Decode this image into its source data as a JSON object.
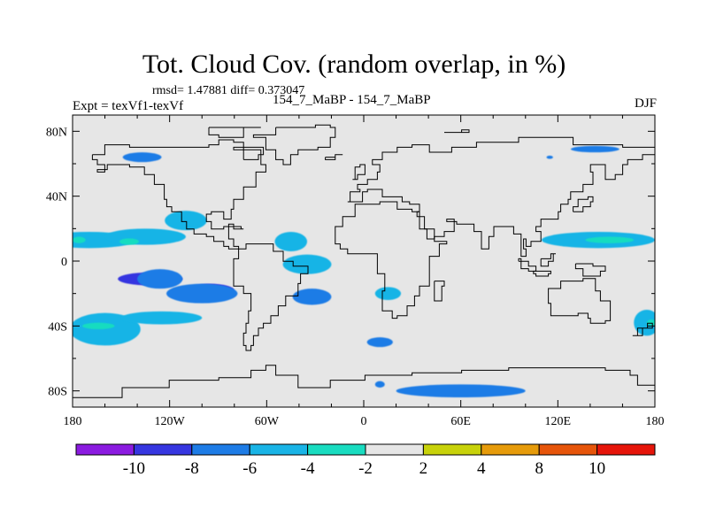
{
  "chart_data": {
    "type": "heatmap",
    "title": "Tot. Cloud Cov. (random overlap, in %)",
    "stats_text": "rmsd= 1.47881 diff= 0.373047",
    "left_label": "Expt = texVf1-texVf",
    "center_label": "154_7_MaBP - 154_7_MaBP",
    "right_label": "DJF",
    "xlim": [
      -180,
      180
    ],
    "ylim": [
      -90,
      90
    ],
    "x_ticks": [
      {
        "value": -180,
        "label": "180"
      },
      {
        "value": -120,
        "label": "120W"
      },
      {
        "value": -60,
        "label": "60W"
      },
      {
        "value": 0,
        "label": "0"
      },
      {
        "value": 60,
        "label": "60E"
      },
      {
        "value": 120,
        "label": "120E"
      },
      {
        "value": 180,
        "label": "180"
      }
    ],
    "y_ticks": [
      {
        "value": 80,
        "label": "80N"
      },
      {
        "value": 40,
        "label": "40N"
      },
      {
        "value": 0,
        "label": "0"
      },
      {
        "value": -40,
        "label": "40S"
      },
      {
        "value": -80,
        "label": "80S"
      }
    ],
    "colorbar": {
      "levels": [
        -10,
        -8,
        -6,
        -4,
        -2,
        2,
        4,
        8,
        10
      ],
      "labels": [
        "-10",
        "-8",
        "-6",
        "-4",
        "-2",
        "2",
        "4",
        "8",
        "10"
      ],
      "colors": [
        "#8b1be0",
        "#3636e0",
        "#1e7ce6",
        "#19b4e6",
        "#19dcc0",
        "#e6e6e6",
        "#c8d20a",
        "#e69b0a",
        "#e6550a",
        "#e6150a"
      ]
    },
    "regions": [
      {
        "level": 3,
        "lon": -170,
        "lat": 13,
        "rlon": 30,
        "rlat": 5
      },
      {
        "level": 3,
        "lon": -135,
        "lat": 15,
        "rlon": 25,
        "rlat": 5
      },
      {
        "level": 3,
        "lon": -110,
        "lat": 25,
        "rlon": 13,
        "rlat": 6
      },
      {
        "level": 3,
        "lon": -45,
        "lat": 12,
        "rlon": 10,
        "rlat": 6
      },
      {
        "level": 3,
        "lon": -35,
        "lat": -2,
        "rlon": 15,
        "rlat": 6
      },
      {
        "level": 3,
        "lon": -160,
        "lat": -42,
        "rlon": 22,
        "rlat": 10
      },
      {
        "level": 3,
        "lon": -125,
        "lat": -35,
        "rlon": 25,
        "rlat": 4
      },
      {
        "level": 3,
        "lon": 15,
        "lat": -20,
        "rlon": 8,
        "rlat": 4
      },
      {
        "level": 3,
        "lon": 145,
        "lat": 13,
        "rlon": 35,
        "rlat": 5
      },
      {
        "level": 3,
        "lon": 175,
        "lat": -38,
        "rlon": 8,
        "rlat": 8
      },
      {
        "level": 4,
        "lon": -176,
        "lat": 13,
        "rlon": 4,
        "rlat": 2
      },
      {
        "level": 4,
        "lon": -145,
        "lat": 12,
        "rlon": 6,
        "rlat": 2
      },
      {
        "level": 4,
        "lon": -164,
        "lat": -40,
        "rlon": 10,
        "rlat": 2
      },
      {
        "level": 4,
        "lon": 152,
        "lat": 13,
        "rlon": 15,
        "rlat": 2
      },
      {
        "level": 4,
        "lon": 178,
        "lat": -38,
        "rlon": 3,
        "rlat": 2
      },
      {
        "level": 1,
        "lon": -132,
        "lat": -11,
        "rlon": 20,
        "rlat": 4
      },
      {
        "level": 1,
        "lon": -95,
        "lat": -18,
        "rlon": 15,
        "rlat": 4
      },
      {
        "level": 2,
        "lon": -126,
        "lat": -11,
        "rlon": 14,
        "rlat": 6
      },
      {
        "level": 2,
        "lon": -100,
        "lat": -20,
        "rlon": 22,
        "rlat": 6
      },
      {
        "level": 2,
        "lon": -32,
        "lat": -22,
        "rlon": 12,
        "rlat": 5
      },
      {
        "level": 2,
        "lon": -137,
        "lat": 64,
        "rlon": 12,
        "rlat": 3
      },
      {
        "level": 2,
        "lon": 143,
        "lat": 69,
        "rlon": 15,
        "rlat": 2
      },
      {
        "level": 2,
        "lon": 115,
        "lat": 64,
        "rlon": 2,
        "rlat": 1
      },
      {
        "level": 2,
        "lon": 10,
        "lat": -50,
        "rlon": 8,
        "rlat": 3
      },
      {
        "level": 2,
        "lon": 60,
        "lat": -80,
        "rlon": 40,
        "rlat": 4
      },
      {
        "level": 2,
        "lon": 10,
        "lat": -76,
        "rlon": 3,
        "rlat": 2
      }
    ],
    "coastlines": [
      [
        [
          -168,
          66
        ],
        [
          -160,
          72
        ],
        [
          -145,
          70
        ],
        [
          -125,
          70
        ],
        [
          -108,
          70
        ],
        [
          -95,
          72
        ],
        [
          -90,
          74
        ],
        [
          -80,
          73
        ],
        [
          -74,
          68
        ],
        [
          -64,
          60
        ],
        [
          -60,
          55
        ],
        [
          -67,
          45
        ],
        [
          -75,
          38
        ],
        [
          -80,
          32
        ],
        [
          -82,
          26
        ],
        [
          -86,
          30
        ],
        [
          -94,
          29
        ],
        [
          -97,
          25
        ],
        [
          -94,
          20
        ],
        [
          -90,
          20
        ],
        [
          -86,
          21
        ],
        [
          -84,
          14
        ],
        [
          -80,
          9
        ],
        [
          -77,
          8
        ],
        [
          -73,
          11
        ],
        [
          -64,
          10
        ],
        [
          -56,
          6
        ],
        [
          -50,
          0
        ],
        [
          -44,
          -3
        ],
        [
          -35,
          -7
        ],
        [
          -39,
          -14
        ],
        [
          -41,
          -22
        ],
        [
          -48,
          -28
        ],
        [
          -53,
          -34
        ],
        [
          -58,
          -38
        ],
        [
          -62,
          -41
        ],
        [
          -65,
          -46
        ],
        [
          -68,
          -52
        ],
        [
          -70,
          -55
        ],
        [
          -73,
          -52
        ],
        [
          -74,
          -45
        ],
        [
          -73,
          -38
        ],
        [
          -71,
          -30
        ],
        [
          -70,
          -20
        ],
        [
          -75,
          -15
        ],
        [
          -80,
          -6
        ],
        [
          -81,
          -2
        ],
        [
          -80,
          2
        ],
        [
          -78,
          8
        ],
        [
          -83,
          9
        ],
        [
          -86,
          12
        ],
        [
          -92,
          15
        ],
        [
          -97,
          16
        ],
        [
          -105,
          20
        ],
        [
          -110,
          24
        ],
        [
          -112,
          30
        ],
        [
          -118,
          34
        ],
        [
          -122,
          38
        ],
        [
          -124,
          42
        ],
        [
          -124,
          48
        ],
        [
          -130,
          54
        ],
        [
          -136,
          58
        ],
        [
          -145,
          60
        ],
        [
          -152,
          59
        ],
        [
          -158,
          57
        ],
        [
          -164,
          55
        ],
        [
          -160,
          60
        ],
        [
          -165,
          63
        ],
        [
          -168,
          66
        ]
      ],
      [
        [
          -55,
          82
        ],
        [
          -30,
          84
        ],
        [
          -20,
          82
        ],
        [
          -18,
          76
        ],
        [
          -20,
          70
        ],
        [
          -28,
          68
        ],
        [
          -40,
          65
        ],
        [
          -45,
          60
        ],
        [
          -50,
          63
        ],
        [
          -55,
          68
        ],
        [
          -60,
          76
        ],
        [
          -68,
          78
        ],
        [
          -55,
          82
        ]
      ],
      [
        [
          -95,
          82
        ],
        [
          -75,
          83
        ],
        [
          -64,
          82
        ],
        [
          -75,
          76
        ],
        [
          -90,
          78
        ],
        [
          -95,
          82
        ]
      ],
      [
        [
          -17,
          15
        ],
        [
          -17,
          21
        ],
        [
          -13,
          28
        ],
        [
          -6,
          35
        ],
        [
          10,
          37
        ],
        [
          20,
          32
        ],
        [
          30,
          31
        ],
        [
          34,
          28
        ],
        [
          38,
          20
        ],
        [
          43,
          12
        ],
        [
          51,
          11
        ],
        [
          46,
          3
        ],
        [
          40,
          -5
        ],
        [
          40,
          -15
        ],
        [
          35,
          -22
        ],
        [
          32,
          -28
        ],
        [
          27,
          -34
        ],
        [
          20,
          -35
        ],
        [
          17,
          -30
        ],
        [
          12,
          -18
        ],
        [
          13,
          -8
        ],
        [
          9,
          -1
        ],
        [
          9,
          4
        ],
        [
          5,
          5
        ],
        [
          -5,
          5
        ],
        [
          -10,
          7
        ],
        [
          -15,
          11
        ],
        [
          -17,
          15
        ]
      ],
      [
        [
          -10,
          36
        ],
        [
          -9,
          43
        ],
        [
          -2,
          44
        ],
        [
          -4,
          48
        ],
        [
          2,
          51
        ],
        [
          8,
          55
        ],
        [
          10,
          59
        ],
        [
          5,
          62
        ],
        [
          12,
          67
        ],
        [
          20,
          70
        ],
        [
          30,
          71
        ],
        [
          40,
          67
        ],
        [
          55,
          70
        ],
        [
          70,
          73
        ],
        [
          80,
          73
        ],
        [
          95,
          77
        ],
        [
          110,
          76
        ],
        [
          130,
          72
        ],
        [
          145,
          72
        ],
        [
          160,
          70
        ],
        [
          170,
          70
        ],
        [
          180,
          69
        ],
        [
          180,
          65
        ],
        [
          172,
          62
        ],
        [
          163,
          60
        ],
        [
          160,
          53
        ],
        [
          156,
          51
        ],
        [
          150,
          59
        ],
        [
          140,
          55
        ],
        [
          142,
          48
        ],
        [
          135,
          43
        ],
        [
          128,
          38
        ],
        [
          126,
          35
        ],
        [
          122,
          31
        ],
        [
          120,
          26
        ],
        [
          110,
          21
        ],
        [
          106,
          18
        ],
        [
          109,
          12
        ],
        [
          104,
          9
        ],
        [
          100,
          13
        ],
        [
          99,
          8
        ],
        [
          101,
          3
        ],
        [
          98,
          8
        ],
        [
          97,
          16
        ],
        [
          92,
          21
        ],
        [
          88,
          22
        ],
        [
          80,
          15
        ],
        [
          77,
          8
        ],
        [
          73,
          18
        ],
        [
          68,
          23
        ],
        [
          58,
          25
        ],
        [
          56,
          26
        ],
        [
          52,
          24
        ],
        [
          56,
          18
        ],
        [
          50,
          15
        ],
        [
          44,
          13
        ],
        [
          39,
          20
        ],
        [
          35,
          28
        ],
        [
          33,
          31
        ],
        [
          35,
          35
        ],
        [
          28,
          37
        ],
        [
          24,
          40
        ],
        [
          20,
          40
        ],
        [
          15,
          40
        ],
        [
          12,
          44
        ],
        [
          9,
          44
        ],
        [
          3,
          43
        ],
        [
          -1,
          37
        ],
        [
          -10,
          36
        ]
      ],
      [
        [
          114,
          -22
        ],
        [
          114,
          -26
        ],
        [
          116,
          -34
        ],
        [
          124,
          -34
        ],
        [
          132,
          -32
        ],
        [
          138,
          -35
        ],
        [
          140,
          -38
        ],
        [
          146,
          -39
        ],
        [
          150,
          -37
        ],
        [
          153,
          -28
        ],
        [
          153,
          -25
        ],
        [
          146,
          -19
        ],
        [
          143,
          -11
        ],
        [
          136,
          -12
        ],
        [
          131,
          -12
        ],
        [
          122,
          -17
        ],
        [
          114,
          -22
        ]
      ],
      [
        [
          -180,
          -84
        ],
        [
          -150,
          -78
        ],
        [
          -120,
          -74
        ],
        [
          -90,
          -72
        ],
        [
          -70,
          -68
        ],
        [
          -60,
          -64
        ],
        [
          -55,
          -70
        ],
        [
          -40,
          -78
        ],
        [
          -20,
          -73
        ],
        [
          0,
          -70
        ],
        [
          30,
          -69
        ],
        [
          60,
          -67
        ],
        [
          90,
          -66
        ],
        [
          120,
          -66
        ],
        [
          150,
          -68
        ],
        [
          165,
          -71
        ],
        [
          170,
          -77
        ],
        [
          180,
          -80
        ]
      ],
      [
        [
          -7,
          50
        ],
        [
          -5,
          58
        ],
        [
          -2,
          59
        ],
        [
          1,
          53
        ],
        [
          -4,
          50
        ],
        [
          -7,
          50
        ]
      ],
      [
        [
          44,
          -13
        ],
        [
          50,
          -15
        ],
        [
          48,
          -25
        ],
        [
          44,
          -24
        ],
        [
          44,
          -13
        ]
      ],
      [
        [
          130,
          31
        ],
        [
          135,
          34
        ],
        [
          140,
          36
        ],
        [
          141,
          40
        ],
        [
          139,
          38
        ],
        [
          133,
          33
        ],
        [
          130,
          31
        ]
      ],
      [
        [
          -24,
          64
        ],
        [
          -18,
          66
        ],
        [
          -13,
          65
        ],
        [
          -18,
          63
        ],
        [
          -24,
          64
        ]
      ],
      [
        [
          50,
          80
        ],
        [
          60,
          81
        ],
        [
          65,
          80
        ],
        [
          55,
          79
        ],
        [
          50,
          80
        ]
      ],
      [
        [
          95,
          0
        ],
        [
          102,
          -3
        ],
        [
          106,
          -6
        ],
        [
          102,
          -4
        ],
        [
          98,
          2
        ],
        [
          95,
          0
        ]
      ],
      [
        [
          109,
          2
        ],
        [
          115,
          5
        ],
        [
          119,
          5
        ],
        [
          117,
          0
        ],
        [
          114,
          -3
        ],
        [
          110,
          -2
        ],
        [
          109,
          2
        ]
      ],
      [
        [
          131,
          -1
        ],
        [
          141,
          -3
        ],
        [
          150,
          -6
        ],
        [
          147,
          -10
        ],
        [
          141,
          -9
        ],
        [
          135,
          -4
        ],
        [
          131,
          -1
        ]
      ],
      [
        [
          105,
          -6
        ],
        [
          115,
          -8
        ],
        [
          114,
          -9
        ],
        [
          106,
          -7
        ],
        [
          105,
          -6
        ]
      ],
      [
        [
          166,
          -46
        ],
        [
          172,
          -41
        ],
        [
          178,
          -38
        ],
        [
          175,
          -41
        ],
        [
          169,
          -46
        ],
        [
          166,
          -46
        ]
      ],
      [
        [
          -84,
          22
        ],
        [
          -76,
          20
        ],
        [
          -74,
          20
        ],
        [
          -80,
          23
        ],
        [
          -84,
          22
        ]
      ],
      [
        [
          -75,
          63
        ],
        [
          -65,
          66
        ],
        [
          -62,
          70
        ],
        [
          -72,
          70
        ],
        [
          -80,
          68
        ],
        [
          -75,
          63
        ]
      ]
    ]
  }
}
